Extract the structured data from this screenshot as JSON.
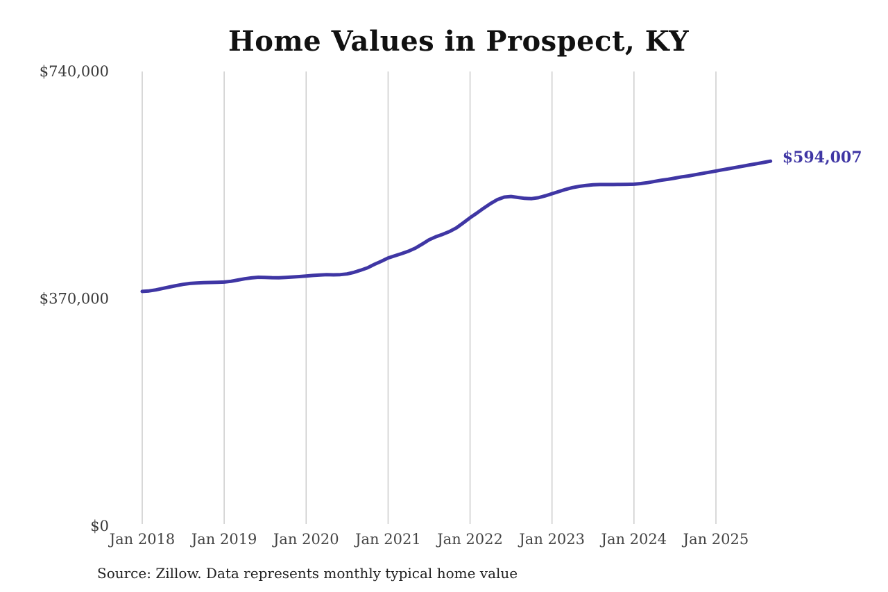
{
  "page": {
    "background": "#ffffff"
  },
  "header": {
    "title": "Home Values in Prospect, KY"
  },
  "footer": {
    "source_note": "Source: Zillow. Data represents monthly typical home value"
  },
  "chart_data": {
    "type": "line",
    "title": "Home Values in Prospect, KY",
    "xlabel": "",
    "ylabel": "",
    "ylim": [
      0,
      740000
    ],
    "grid": "vertical-only",
    "legend": "none",
    "line_color": "#3f36a4",
    "grid_color": "#cccccc",
    "y_tick_color": "#3a3a3a",
    "x_tick_color": "#444444",
    "x_tick_labels": [
      "Jan 2018",
      "Jan 2019",
      "Jan 2020",
      "Jan 2021",
      "Jan 2022",
      "Jan 2023",
      "Jan 2024",
      "Jan 2025"
    ],
    "y_ticks": [
      {
        "label": "$0",
        "value": 0
      },
      {
        "label": "$370,000",
        "value": 370000
      },
      {
        "label": "$740,000",
        "value": 740000
      }
    ],
    "end_label": "$594,007",
    "end_value": 594007,
    "months": [
      "2018-01",
      "2018-02",
      "2018-03",
      "2018-04",
      "2018-05",
      "2018-06",
      "2018-07",
      "2018-08",
      "2018-09",
      "2018-10",
      "2018-11",
      "2018-12",
      "2019-01",
      "2019-02",
      "2019-03",
      "2019-04",
      "2019-05",
      "2019-06",
      "2019-07",
      "2019-08",
      "2019-09",
      "2019-10",
      "2019-11",
      "2019-12",
      "2020-01",
      "2020-02",
      "2020-03",
      "2020-04",
      "2020-05",
      "2020-06",
      "2020-07",
      "2020-08",
      "2020-09",
      "2020-10",
      "2020-11",
      "2020-12",
      "2021-01",
      "2021-02",
      "2021-03",
      "2021-04",
      "2021-05",
      "2021-06",
      "2021-07",
      "2021-08",
      "2021-09",
      "2021-10",
      "2021-11",
      "2021-12",
      "2022-01",
      "2022-02",
      "2022-03",
      "2022-04",
      "2022-05",
      "2022-06",
      "2022-07",
      "2022-08",
      "2022-09",
      "2022-10",
      "2022-11",
      "2022-12",
      "2023-01",
      "2023-02",
      "2023-03",
      "2023-04",
      "2023-05",
      "2023-06",
      "2023-07",
      "2023-08",
      "2023-09",
      "2023-10",
      "2023-11",
      "2023-12",
      "2024-01",
      "2024-02",
      "2024-03",
      "2024-04",
      "2024-05",
      "2024-06",
      "2024-07",
      "2024-08",
      "2024-09",
      "2024-10",
      "2024-11",
      "2024-12",
      "2025-01",
      "2025-02",
      "2025-03",
      "2025-04",
      "2025-05",
      "2025-06",
      "2025-07",
      "2025-08",
      "2025-09"
    ],
    "values": [
      382000,
      382800,
      384500,
      386800,
      389200,
      391500,
      393500,
      395000,
      395800,
      396200,
      396500,
      396800,
      397200,
      398500,
      400500,
      402500,
      404000,
      405000,
      404800,
      404300,
      404200,
      404800,
      405500,
      406200,
      407000,
      408000,
      408800,
      409200,
      409000,
      409300,
      410500,
      413000,
      416500,
      420500,
      426000,
      431000,
      436400,
      440000,
      443500,
      447500,
      452500,
      459000,
      466000,
      471000,
      475000,
      479500,
      485500,
      493500,
      502000,
      509500,
      517500,
      525000,
      531500,
      535500,
      536500,
      535000,
      533500,
      533000,
      534500,
      537500,
      541000,
      544500,
      548000,
      551000,
      553000,
      554500,
      555500,
      556000,
      556000,
      556000,
      556200,
      556300,
      556500,
      557500,
      559000,
      561000,
      563000,
      564500,
      566500,
      568500,
      570000,
      572000,
      574000,
      576000,
      578000,
      580000,
      582000,
      584000,
      586000,
      588000,
      590000,
      592000,
      594007
    ]
  }
}
